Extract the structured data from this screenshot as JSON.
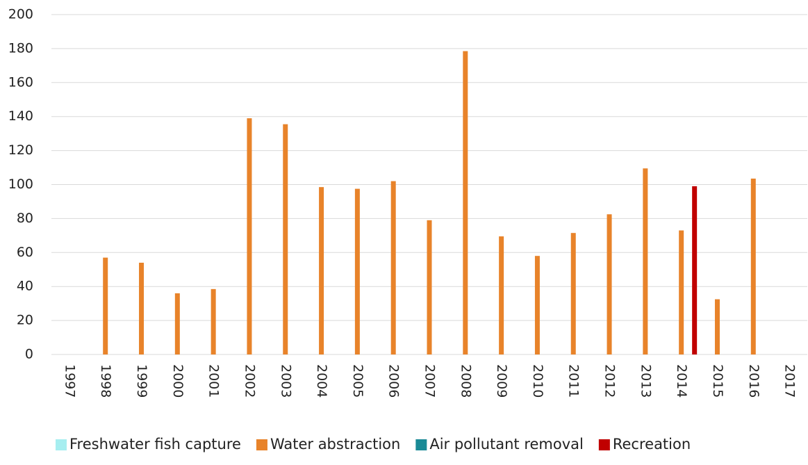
{
  "chart_data": {
    "type": "bar",
    "categories": [
      "1997",
      "1998",
      "1999",
      "2000",
      "2001",
      "2002",
      "2003",
      "2004",
      "2005",
      "2006",
      "2007",
      "2008",
      "2009",
      "2010",
      "2011",
      "2012",
      "2013",
      "2014",
      "2015",
      "2016",
      "2017"
    ],
    "series": [
      {
        "name": "Freshwater fish capture",
        "color": "#a6eef0",
        "values": [
          0,
          0,
          0,
          0,
          0,
          0,
          0,
          0,
          0,
          0,
          0,
          0,
          0,
          0,
          0,
          0,
          0,
          0,
          0,
          0,
          0
        ]
      },
      {
        "name": "Water abstraction",
        "color": "#e8832a",
        "values": [
          0,
          57,
          54,
          36,
          38.5,
          139,
          135.5,
          98.5,
          97.5,
          102,
          79,
          178.5,
          69.5,
          58,
          71.5,
          82.5,
          109.5,
          73,
          32.5,
          103.5,
          0
        ]
      },
      {
        "name": "Air pollutant removal",
        "color": "#1a8a96",
        "values": [
          0,
          0,
          0,
          0,
          0,
          0,
          0,
          0,
          0,
          0,
          0,
          0,
          0,
          0,
          0,
          0,
          0,
          0,
          0,
          0,
          0
        ]
      },
      {
        "name": "Recreation",
        "color": "#c00000",
        "values": [
          0,
          0,
          0,
          0,
          0,
          0,
          0,
          0,
          0,
          0,
          0,
          0,
          0,
          0,
          0,
          0,
          0,
          99,
          0,
          0,
          0
        ]
      }
    ],
    "ylim": [
      0,
      200
    ],
    "yticks": [
      0,
      20,
      40,
      60,
      80,
      100,
      120,
      140,
      160,
      180,
      200
    ],
    "grid": true,
    "legend": "bottom"
  }
}
